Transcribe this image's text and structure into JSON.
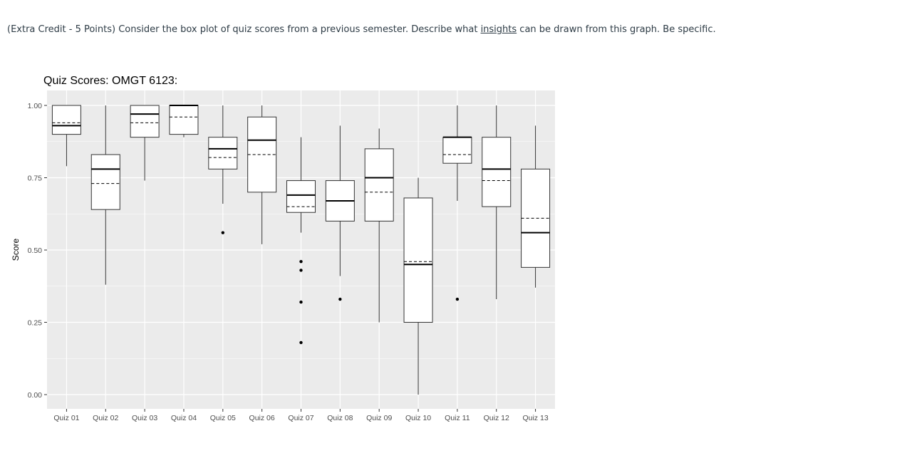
{
  "question": {
    "prefix": "(Extra Credit - 5 Points) Consider the box plot of quiz scores from a previous semester.  Describe what ",
    "link": "insights",
    "suffix": " can be drawn from this graph.  Be specific."
  },
  "chart_data": {
    "type": "box",
    "title": "Quiz Scores:  OMGT 6123:",
    "xlabel": "",
    "ylabel": "Score",
    "ylim": [
      -0.05,
      1.05
    ],
    "yticks": [
      "0.00",
      "0.25",
      "0.50",
      "0.75",
      "1.00"
    ],
    "grid": true,
    "categories": [
      "Quiz 01",
      "Quiz 02",
      "Quiz 03",
      "Quiz 04",
      "Quiz 05",
      "Quiz 06",
      "Quiz 07",
      "Quiz 08",
      "Quiz 09",
      "Quiz 10",
      "Quiz 11",
      "Quiz 12",
      "Quiz 13"
    ],
    "boxes": [
      {
        "whisker_low": 0.79,
        "q1": 0.9,
        "median": 0.93,
        "mean": 0.94,
        "q3": 1.0,
        "whisker_high": 1.0,
        "outliers": []
      },
      {
        "whisker_low": 0.38,
        "q1": 0.64,
        "median": 0.78,
        "mean": 0.73,
        "q3": 0.83,
        "whisker_high": 1.0,
        "outliers": []
      },
      {
        "whisker_low": 0.74,
        "q1": 0.89,
        "median": 0.97,
        "mean": 0.94,
        "q3": 1.0,
        "whisker_high": 1.0,
        "outliers": []
      },
      {
        "whisker_low": 0.89,
        "q1": 0.9,
        "median": 1.0,
        "mean": 0.96,
        "q3": 1.0,
        "whisker_high": 1.0,
        "outliers": []
      },
      {
        "whisker_low": 0.66,
        "q1": 0.78,
        "median": 0.85,
        "mean": 0.82,
        "q3": 0.89,
        "whisker_high": 1.0,
        "outliers": [
          0.56
        ]
      },
      {
        "whisker_low": 0.52,
        "q1": 0.7,
        "median": 0.88,
        "mean": 0.83,
        "q3": 0.96,
        "whisker_high": 1.0,
        "outliers": []
      },
      {
        "whisker_low": 0.56,
        "q1": 0.63,
        "median": 0.69,
        "mean": 0.65,
        "q3": 0.74,
        "whisker_high": 0.89,
        "outliers": [
          0.46,
          0.43,
          0.32,
          0.18
        ]
      },
      {
        "whisker_low": 0.41,
        "q1": 0.6,
        "median": 0.67,
        "mean": 0.67,
        "q3": 0.74,
        "whisker_high": 0.93,
        "outliers": [
          0.33
        ]
      },
      {
        "whisker_low": 0.25,
        "q1": 0.6,
        "median": 0.75,
        "mean": 0.7,
        "q3": 0.85,
        "whisker_high": 0.92,
        "outliers": []
      },
      {
        "whisker_low": 0.0,
        "q1": 0.25,
        "median": 0.45,
        "mean": 0.46,
        "q3": 0.68,
        "whisker_high": 0.75,
        "outliers": []
      },
      {
        "whisker_low": 0.67,
        "q1": 0.8,
        "median": 0.89,
        "mean": 0.83,
        "q3": 0.89,
        "whisker_high": 1.0,
        "outliers": [
          0.33
        ]
      },
      {
        "whisker_low": 0.33,
        "q1": 0.65,
        "median": 0.78,
        "mean": 0.74,
        "q3": 0.89,
        "whisker_high": 1.0,
        "outliers": []
      },
      {
        "whisker_low": 0.37,
        "q1": 0.44,
        "median": 0.56,
        "mean": 0.61,
        "q3": 0.78,
        "whisker_high": 0.93,
        "outliers": []
      }
    ],
    "colors": {
      "panel": "#ebebeb",
      "grid": "#ffffff",
      "box_fill": "#ffffff",
      "box_stroke": "#333333",
      "tick_text": "#4d4d4d"
    }
  }
}
